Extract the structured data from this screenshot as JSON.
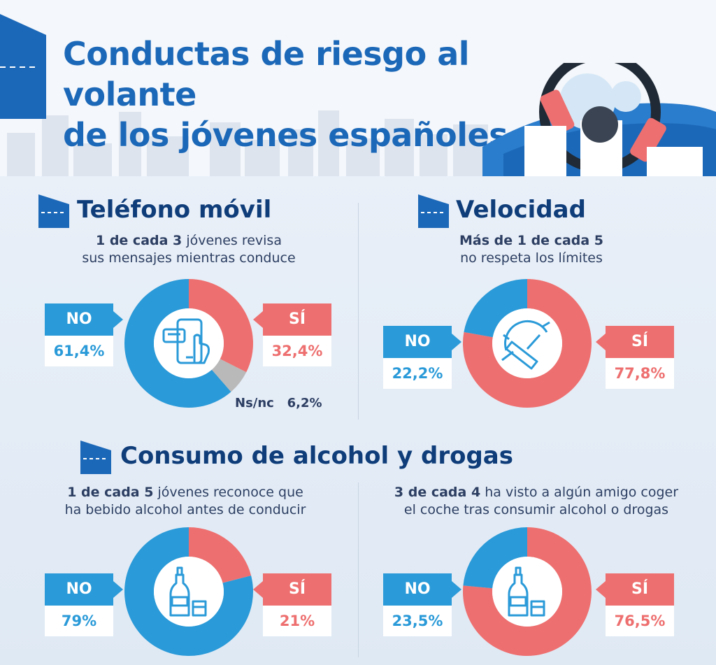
{
  "title": {
    "line1": "Conductas de riesgo al volante",
    "line2": "de los jóvenes españoles"
  },
  "colors": {
    "no": "#2a9ad8",
    "si": "#ee6f6f",
    "nsnc": "#b9b9b9",
    "title": "#1c68b8",
    "section": "#0f3d7a"
  },
  "sections": {
    "movil": {
      "title": "Teléfono móvil",
      "subtitle_bold": "1 de cada 3",
      "subtitle_rest": " jóvenes revisa",
      "subtitle_line2": "sus mensajes mientras conduce",
      "icon": "phone-chat-icon"
    },
    "velocidad": {
      "title": "Velocidad",
      "subtitle_bold": "Más de 1 de cada 5",
      "subtitle_line2": "no respeta los límites",
      "icon": "speedometer-icon"
    },
    "alcohol": {
      "title": "Consumo de alcohol y drogas",
      "left_bold": "1 de cada 5",
      "left_rest": " jóvenes reconoce que",
      "left_line2": "ha bebido alcohol antes de conducir",
      "right_bold": "3 de cada 4",
      "right_rest": " ha visto a algún amigo coger",
      "right_line2": "el coche tras consumir alcohol o drogas",
      "icon": "bottle-glass-icon"
    }
  },
  "labels": {
    "no": "NO",
    "si": "SÍ",
    "nsnc": "Ns/nc",
    "nsnc_value": "6,2%"
  },
  "chart_data": [
    {
      "type": "pie",
      "categories": [
        "NO",
        "SÍ",
        "Ns/nc"
      ],
      "values": [
        61.4,
        32.4,
        6.2
      ],
      "display": [
        "61,4%",
        "32,4%",
        "6,2%"
      ]
    },
    {
      "type": "pie",
      "categories": [
        "NO",
        "SÍ"
      ],
      "values": [
        22.2,
        77.8
      ],
      "display": [
        "22,2%",
        "77,8%"
      ]
    },
    {
      "type": "pie",
      "categories": [
        "NO",
        "SÍ"
      ],
      "values": [
        79,
        21
      ],
      "display": [
        "79%",
        "21%"
      ]
    },
    {
      "type": "pie",
      "categories": [
        "NO",
        "SÍ"
      ],
      "values": [
        23.5,
        76.5
      ],
      "display": [
        "23,5%",
        "76,5%"
      ]
    }
  ]
}
